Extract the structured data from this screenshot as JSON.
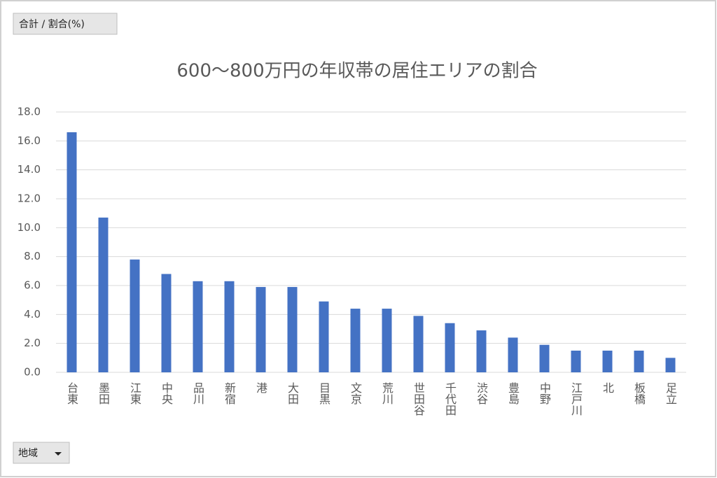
{
  "pivot_buttons": {
    "values": "合計 / 割合(%)",
    "axis": "地域"
  },
  "chart_data": {
    "type": "bar",
    "title": "600～800万円の年収帯の居住エリアの割合",
    "categories": [
      "台東",
      "墨田",
      "江東",
      "中央",
      "品川",
      "新宿",
      "港",
      "大田",
      "目黒",
      "文京",
      "荒川",
      "世田谷",
      "千代田",
      "渋谷",
      "豊島",
      "中野",
      "江戸川",
      "北",
      "板橋",
      "足立"
    ],
    "values": [
      16.6,
      10.7,
      7.8,
      6.8,
      6.3,
      6.3,
      5.9,
      5.9,
      4.9,
      4.4,
      4.4,
      3.9,
      3.4,
      2.9,
      2.4,
      1.9,
      1.5,
      1.5,
      1.5,
      1.0
    ],
    "color": "#4472c4",
    "ylim": [
      0,
      18
    ],
    "yticks": [
      {
        "value": 0,
        "label": "0.0"
      },
      {
        "value": 2,
        "label": "2.0"
      },
      {
        "value": 4,
        "label": "4.0"
      },
      {
        "value": 6,
        "label": "6.0"
      },
      {
        "value": 8,
        "label": "8.0"
      },
      {
        "value": 10,
        "label": "10.0"
      },
      {
        "value": 12,
        "label": "12.0"
      },
      {
        "value": 14,
        "label": "14.0"
      },
      {
        "value": 16,
        "label": "16.0"
      },
      {
        "value": 18,
        "label": "18.0"
      }
    ],
    "grid": true
  }
}
